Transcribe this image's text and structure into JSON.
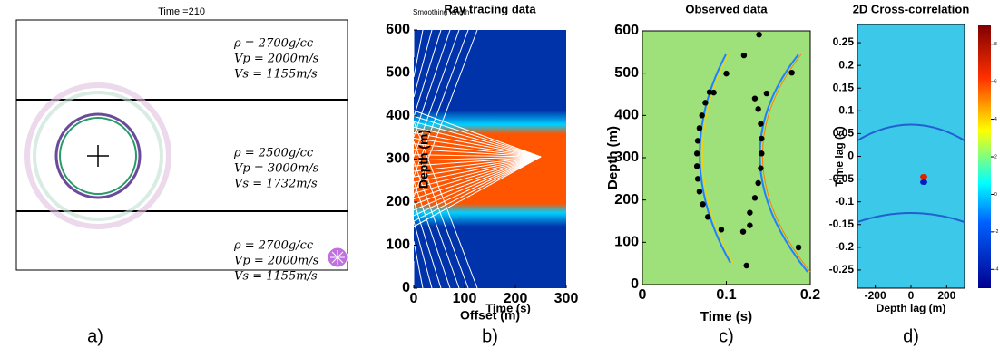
{
  "panel_a": {
    "title": "Time =210",
    "label": "a)",
    "layers": [
      [
        "ρ = 2700g/cc",
        "Vp = 2000m/s",
        "Vs = 1155m/s"
      ],
      [
        "ρ = 2500g/cc",
        "Vp = 3000m/s",
        "Vs = 1732m/s"
      ],
      [
        "ρ = 2700g/cc",
        "Vp = 2000m/s",
        "Vs = 1155m/s"
      ]
    ]
  },
  "panel_b": {
    "title": "Ray tracing data",
    "subtitle": "Smoothing length",
    "label": "b)",
    "ylabel": "Depth (m)",
    "xlabel": "Offset (m)",
    "xlabel2": "Time (s)",
    "ylim": [
      0,
      600
    ],
    "yticks": [
      0,
      100,
      200,
      300,
      400,
      500,
      600
    ],
    "xlim": [
      0,
      300
    ],
    "xticks": [
      0,
      100,
      200,
      300
    ]
  },
  "panel_c": {
    "title": "Observed data",
    "label": "c)",
    "ylabel": "Depth (m)",
    "xlabel": "Time (s)",
    "ylim": [
      0,
      600
    ],
    "yticks": [
      0,
      100,
      200,
      300,
      400,
      500,
      600
    ],
    "xlim": [
      0,
      0.2
    ],
    "xticks": [
      0,
      0.1,
      0.2
    ],
    "points": {
      "time": [
        0.078,
        0.072,
        0.068,
        0.066,
        0.065,
        0.065,
        0.066,
        0.068,
        0.071,
        0.075,
        0.08,
        0.128,
        0.134,
        0.138,
        0.141,
        0.142,
        0.142,
        0.141,
        0.138,
        0.134,
        0.128,
        0.12,
        0.124,
        0.094,
        0.186,
        0.085,
        0.1,
        0.121,
        0.139,
        0.178,
        0.148
      ],
      "depth": [
        160,
        190,
        220,
        250,
        280,
        310,
        340,
        370,
        400,
        430,
        455,
        170,
        205,
        240,
        275,
        310,
        345,
        380,
        415,
        440,
        140,
        125,
        45,
        130,
        88,
        454,
        499,
        542,
        591,
        501,
        452
      ]
    }
  },
  "panel_d": {
    "title": "2D Cross-correlation",
    "label": "d)",
    "ylabel": "Time lag (s)",
    "xlabel": "Depth lag (m)",
    "ylim": [
      -0.29,
      0.29
    ],
    "yticks": [
      -0.25,
      -0.2,
      -0.15,
      -0.1,
      -0.05,
      0,
      0.05,
      0.1,
      0.15,
      0.2,
      0.25
    ],
    "xlim": [
      -300,
      300
    ],
    "xticks": [
      -200,
      0,
      200
    ],
    "clim": [
      -5,
      9
    ],
    "cticks": [
      8,
      6,
      4,
      2,
      0,
      -2,
      -4
    ]
  }
}
